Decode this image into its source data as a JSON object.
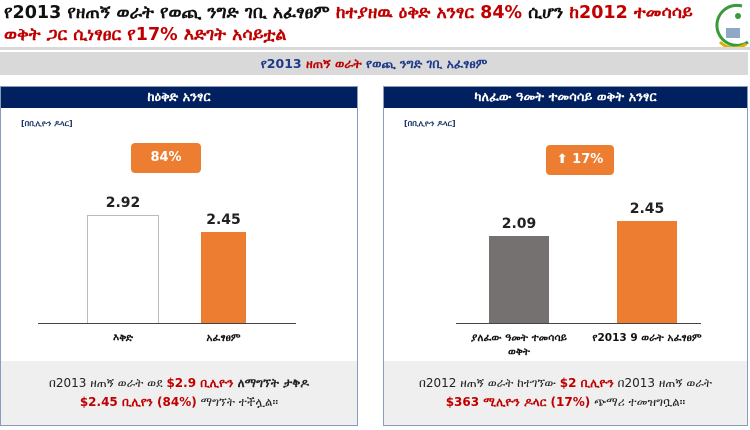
{
  "title": {
    "part1": "የ2013 የዘጠኝ ወራት የወጪ ንግድ ገቢ አፈፃፀም ",
    "part2": "ከተያዘዉ ዕቅድ አንፃር 84%",
    "part3": " ሲሆን ",
    "part4": "ከ2012 ተመሳሳይ ወቅት ጋር ሲነፃፀር የ17% እድገት አሳይቷል"
  },
  "banner": {
    "part1": "የ2013 ",
    "part2": "ዘጠኝ ወራት",
    "part3": " የወጪ ንግድ ገቢ አፈፃፀም"
  },
  "colors": {
    "navy": "#002060",
    "orange": "#ed7d31",
    "red": "#c00000",
    "gray_bar": "#767171"
  },
  "left": {
    "header": "ከዕቅድ አንፃር",
    "unit": "[በቢሊዮን ዶላር]",
    "badge": "84%",
    "footer": {
      "t1": "በ2013 ዘጠኝ ወራት ወደ ",
      "t2": "$2.9 ቢሊዮን",
      "t3": " ለማግኘት ታቅዶ",
      "t4": "$2.45 ቢሊየን (84%)",
      "t5": " ማግኘት ተችሏል።"
    }
  },
  "right": {
    "header": "ካለፈው ዓመት ተመሳሳይ ወቅት አንፃር",
    "unit": "[በቢሊዮን ዶላር]",
    "badge": "17%",
    "badge_icon": "arrow-up-icon",
    "footer": {
      "t1": "በ2012 ዘጠኝ ወራት ከተገኘው ",
      "t2": "$2 ቢሊዮን",
      "t3": " በ2013 ዘጠኝ ወራት",
      "t4": "$363 ሚሊዮን ዶላር (17%)",
      "t5": " ጭማሪ ተመዝግቧል።"
    }
  },
  "chart_data": [
    {
      "type": "bar",
      "categories": [
        "እቅድ",
        "አፈፃፀም"
      ],
      "values": [
        2.92,
        2.45
      ],
      "labels": [
        "2.92",
        "2.45"
      ],
      "colors": [
        "#ffffff",
        "#ed7d31"
      ]
    },
    {
      "type": "bar",
      "categories": [
        "ያለፈው ዓመት ተመሳሳይ ወቅት",
        "የ2013 9 ወራት አፈፃፀም"
      ],
      "values": [
        2.09,
        2.45
      ],
      "labels": [
        "2.09",
        "2.45"
      ],
      "colors": [
        "#767171",
        "#ed7d31"
      ]
    }
  ]
}
